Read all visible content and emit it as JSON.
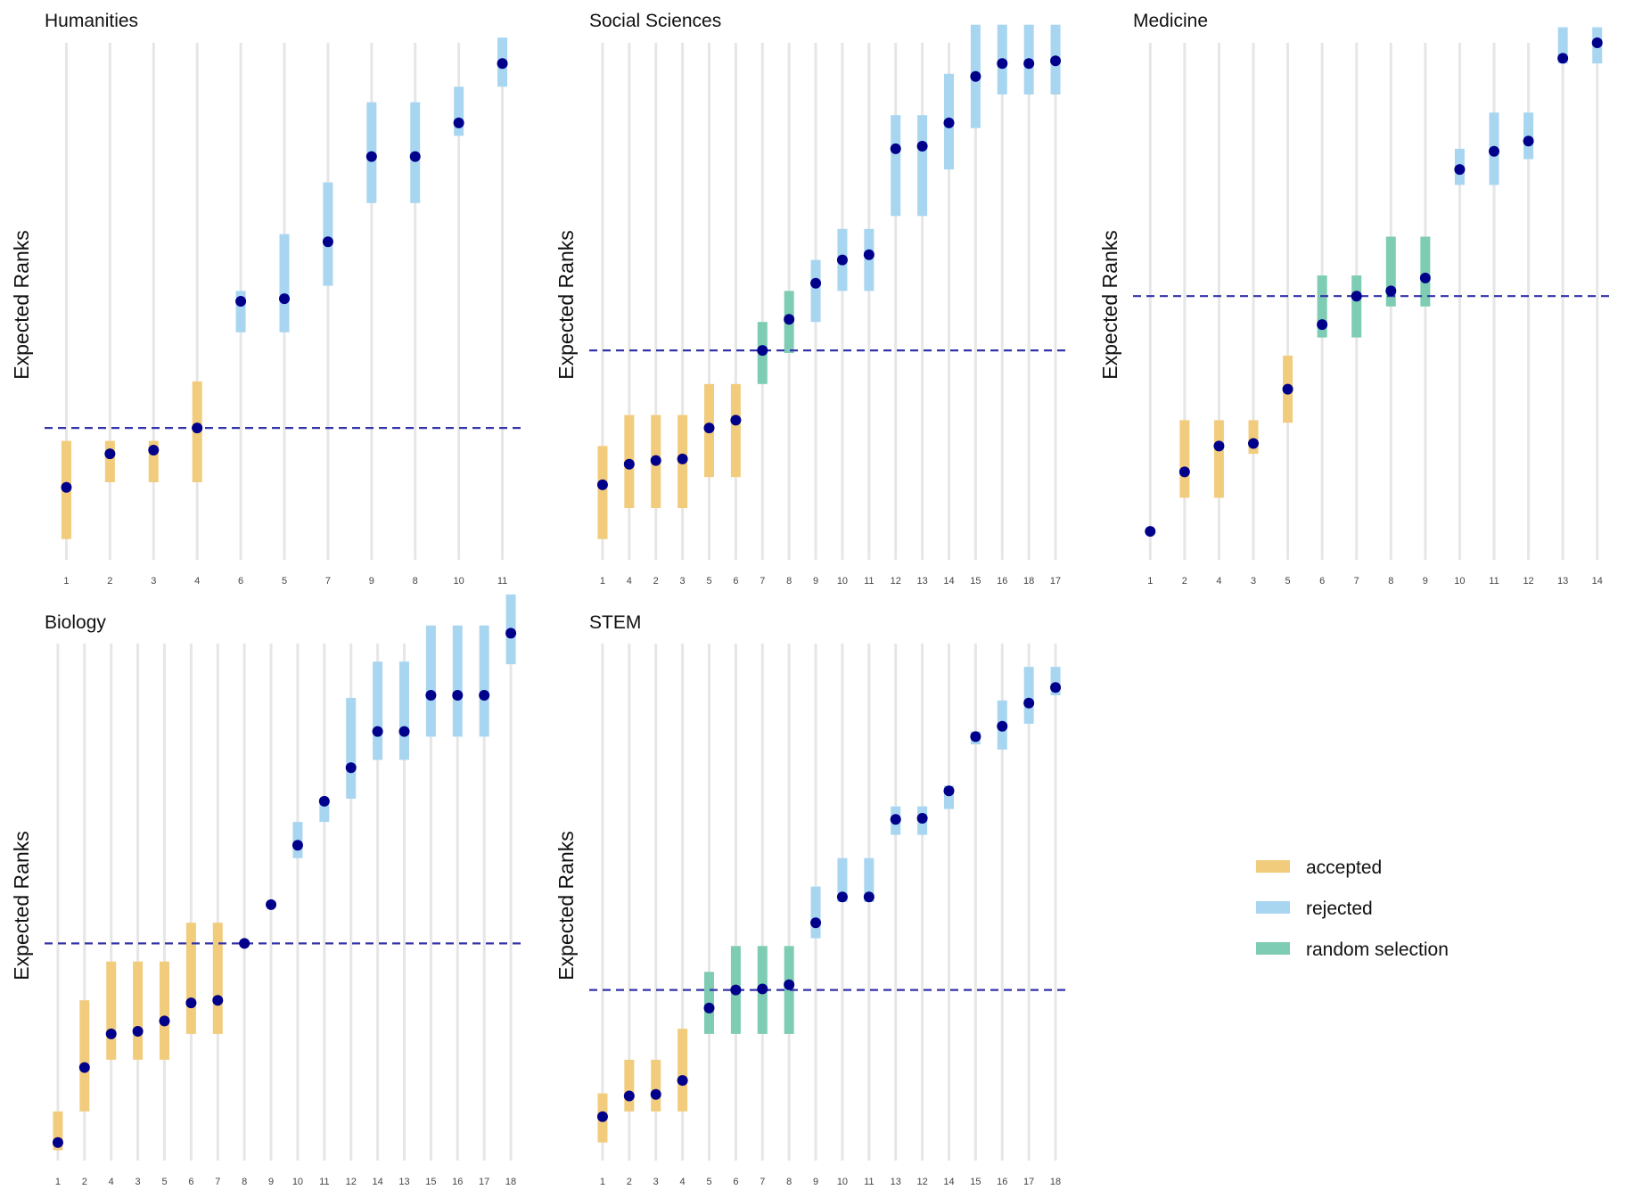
{
  "y_axis_label": "Expected Ranks",
  "legend": [
    {
      "key": "accepted",
      "label": "accepted",
      "color": "#F2CC7D"
    },
    {
      "key": "rejected",
      "label": "rejected",
      "color": "#A8D6F0"
    },
    {
      "key": "random",
      "label": "random selection",
      "color": "#7ECCB3"
    }
  ],
  "point_color": "#00008B",
  "threshold_color": "#3333AA",
  "chart_data": [
    {
      "type": "interval",
      "title": "Humanities",
      "ylabel": "Expected Ranks",
      "ylim": [
        0,
        10
      ],
      "threshold": 2.55,
      "categories": [
        "1",
        "2",
        "3",
        "4",
        "6",
        "5",
        "7",
        "9",
        "8",
        "10",
        "11"
      ],
      "points": [
        1.4,
        2.05,
        2.12,
        2.55,
        5.0,
        5.05,
        6.15,
        7.8,
        7.8,
        8.45,
        9.6
      ],
      "lower": [
        0.4,
        1.5,
        1.5,
        1.5,
        4.4,
        4.4,
        5.3,
        6.9,
        6.9,
        8.2,
        9.15
      ],
      "upper": [
        2.3,
        2.3,
        2.3,
        3.45,
        5.2,
        6.3,
        7.3,
        8.85,
        8.85,
        9.15,
        10.1
      ],
      "status": [
        "accepted",
        "accepted",
        "accepted",
        "accepted",
        "rejected",
        "rejected",
        "rejected",
        "rejected",
        "rejected",
        "rejected",
        "rejected"
      ]
    },
    {
      "type": "interval",
      "title": "Social Sciences",
      "ylabel": "Expected Ranks",
      "ylim": [
        0,
        10
      ],
      "threshold": 4.05,
      "categories": [
        "1",
        "4",
        "2",
        "3",
        "5",
        "6",
        "7",
        "8",
        "9",
        "10",
        "11",
        "12",
        "13",
        "14",
        "15",
        "16",
        "18",
        "17"
      ],
      "points": [
        1.45,
        1.85,
        1.92,
        1.95,
        2.55,
        2.7,
        4.05,
        4.65,
        5.35,
        5.8,
        5.9,
        7.95,
        8.0,
        8.45,
        9.35,
        9.6,
        9.6,
        9.65
      ],
      "lower": [
        0.4,
        1.0,
        1.0,
        1.0,
        1.6,
        1.6,
        3.4,
        4.0,
        4.6,
        5.2,
        5.2,
        6.65,
        6.65,
        7.55,
        8.35,
        9.0,
        9.0,
        9.0
      ],
      "upper": [
        2.2,
        2.8,
        2.8,
        2.8,
        3.4,
        3.4,
        4.6,
        5.2,
        5.8,
        6.4,
        6.4,
        8.6,
        8.6,
        9.4,
        10.35,
        10.35,
        10.35,
        10.35
      ],
      "status": [
        "accepted",
        "accepted",
        "accepted",
        "accepted",
        "accepted",
        "accepted",
        "random",
        "random",
        "rejected",
        "rejected",
        "rejected",
        "rejected",
        "rejected",
        "rejected",
        "rejected",
        "rejected",
        "rejected",
        "rejected"
      ]
    },
    {
      "type": "interval",
      "title": "Medicine",
      "ylabel": "Expected Ranks",
      "ylim": [
        0,
        10
      ],
      "threshold": 5.1,
      "categories": [
        "1",
        "2",
        "4",
        "3",
        "5",
        "6",
        "7",
        "8",
        "9",
        "10",
        "11",
        "12",
        "13",
        "14"
      ],
      "points": [
        0.55,
        1.7,
        2.2,
        2.25,
        3.3,
        4.55,
        5.1,
        5.2,
        5.45,
        7.55,
        7.9,
        8.1,
        9.7,
        10.0
      ],
      "lower": [
        0.55,
        1.2,
        1.2,
        2.05,
        2.65,
        4.3,
        4.3,
        4.9,
        4.9,
        7.25,
        7.25,
        7.75,
        9.6,
        9.6
      ],
      "upper": [
        0.55,
        2.7,
        2.7,
        2.7,
        3.95,
        5.5,
        5.5,
        6.25,
        6.25,
        7.95,
        8.65,
        8.65,
        10.3,
        10.3
      ],
      "status": [
        "accepted",
        "accepted",
        "accepted",
        "accepted",
        "accepted",
        "random",
        "random",
        "random",
        "random",
        "rejected",
        "rejected",
        "rejected",
        "rejected",
        "rejected"
      ]
    },
    {
      "type": "interval",
      "title": "Biology",
      "ylabel": "Expected Ranks",
      "ylim": [
        0,
        10
      ],
      "threshold": 4.2,
      "categories": [
        "1",
        "2",
        "4",
        "3",
        "5",
        "6",
        "7",
        "8",
        "9",
        "10",
        "11",
        "12",
        "14",
        "13",
        "15",
        "16",
        "17",
        "18"
      ],
      "points": [
        0.35,
        1.8,
        2.45,
        2.5,
        2.7,
        3.05,
        3.1,
        4.2,
        4.95,
        6.1,
        6.95,
        7.6,
        8.3,
        8.3,
        9.0,
        9.0,
        9.0,
        10.2
      ],
      "lower": [
        0.2,
        0.95,
        1.95,
        1.95,
        1.95,
        2.45,
        2.45,
        4.2,
        4.95,
        5.85,
        6.55,
        7.0,
        7.75,
        7.75,
        8.2,
        8.2,
        8.2,
        9.6
      ],
      "upper": [
        0.95,
        3.1,
        3.85,
        3.85,
        3.85,
        4.6,
        4.6,
        4.2,
        4.95,
        6.55,
        7.0,
        8.95,
        9.65,
        9.65,
        10.35,
        10.35,
        10.35,
        10.95
      ],
      "status": [
        "accepted",
        "accepted",
        "accepted",
        "accepted",
        "accepted",
        "accepted",
        "accepted",
        "random",
        "random",
        "rejected",
        "rejected",
        "rejected",
        "rejected",
        "rejected",
        "rejected",
        "rejected",
        "rejected",
        "rejected"
      ]
    },
    {
      "type": "interval",
      "title": "STEM",
      "ylabel": "Expected Ranks",
      "ylim": [
        0,
        10
      ],
      "threshold": 3.3,
      "categories": [
        "1",
        "2",
        "3",
        "4",
        "5",
        "6",
        "7",
        "8",
        "9",
        "10",
        "11",
        "13",
        "12",
        "14",
        "15",
        "16",
        "17",
        "18"
      ],
      "points": [
        0.85,
        1.25,
        1.28,
        1.55,
        2.95,
        3.3,
        3.32,
        3.4,
        4.6,
        5.1,
        5.1,
        6.6,
        6.62,
        7.15,
        8.2,
        8.4,
        8.85,
        9.15
      ],
      "lower": [
        0.35,
        0.95,
        0.95,
        0.95,
        2.45,
        2.45,
        2.45,
        2.45,
        4.3,
        5.0,
        5.0,
        6.3,
        6.3,
        6.8,
        8.05,
        7.95,
        8.45,
        9.0
      ],
      "upper": [
        1.3,
        1.95,
        1.95,
        2.55,
        3.65,
        4.15,
        4.15,
        4.15,
        5.3,
        5.85,
        5.85,
        6.85,
        6.85,
        7.25,
        8.3,
        8.9,
        9.55,
        9.55
      ],
      "status": [
        "accepted",
        "accepted",
        "accepted",
        "accepted",
        "random",
        "random",
        "random",
        "random",
        "rejected",
        "rejected",
        "rejected",
        "rejected",
        "rejected",
        "rejected",
        "rejected",
        "rejected",
        "rejected",
        "rejected"
      ]
    }
  ]
}
